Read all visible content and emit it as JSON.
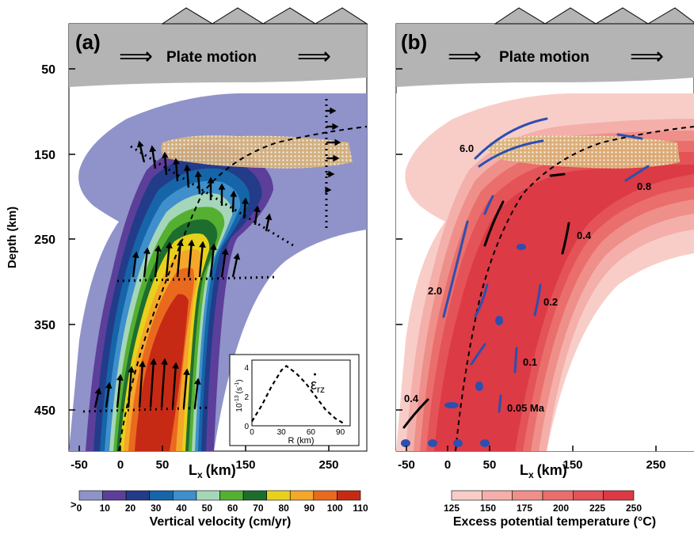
{
  "panel_a": {
    "label": "(a)",
    "plate_motion": "Plate motion",
    "y_axis_title": "Depth (km)",
    "y_ticks": [
      "50",
      "150",
      "250",
      "350",
      "450"
    ],
    "x_ticks": [
      "-50",
      "0",
      "50",
      "150",
      "250"
    ],
    "x_axis_label": "L",
    "x_axis_sub": "x",
    "x_axis_unit": "(km)",
    "inset": {
      "y_label": "10",
      "y_label_exp": "-13",
      "y_label_unit": "(s",
      "y_label_unit_exp": "-1",
      "y_label_close": ")",
      "y_ticks": [
        "0",
        "2",
        "4"
      ],
      "x_ticks": [
        "0",
        "30",
        "60",
        "90"
      ],
      "x_label": "R (km)",
      "curve_label": "ε",
      "curve_label_sub": "rz",
      "curve": [
        [
          0,
          0.3
        ],
        [
          10,
          1.4
        ],
        [
          20,
          2.7
        ],
        [
          30,
          3.8
        ],
        [
          35,
          4.1
        ],
        [
          45,
          3.6
        ],
        [
          55,
          2.9
        ],
        [
          65,
          2.0
        ],
        [
          75,
          1.1
        ],
        [
          85,
          0.5
        ],
        [
          95,
          0.1
        ]
      ]
    },
    "colorbar": {
      "prefix": ">",
      "ticks": [
        "0",
        "10",
        "20",
        "30",
        "40",
        "50",
        "60",
        "70",
        "80",
        "90",
        "100",
        "110"
      ],
      "title": "Vertical velocity (cm/yr)",
      "colors": [
        "#8f93c9",
        "#5c3f9a",
        "#223c8a",
        "#1565a8",
        "#3e8fcb",
        "#a5d6b9",
        "#55b032",
        "#1d6e2e",
        "#e8d11c",
        "#f3a829",
        "#e96a1e",
        "#c72a14"
      ]
    }
  },
  "panel_b": {
    "label": "(b)",
    "plate_motion": "Plate motion",
    "x_ticks": [
      "-50",
      "0",
      "50",
      "150",
      "250"
    ],
    "x_axis_label": "L",
    "x_axis_sub": "x",
    "x_axis_unit": "(km)",
    "contour_labels": [
      "6.0",
      "0.8",
      "0.4",
      "2.0",
      "0.2",
      "0.1",
      "0.05 Ma",
      "0.4"
    ],
    "colorbar": {
      "ticks": [
        "125",
        "150",
        "175",
        "200",
        "225",
        "250"
      ],
      "title": "Excess potential temperature (°C)",
      "colors": [
        "#f8cdc8",
        "#f4afaa",
        "#ef8f8a",
        "#ea6e6c",
        "#e35358",
        "#dc3a45"
      ]
    }
  },
  "colors": {
    "plate": "#b4b4b4",
    "background": "#ffffff",
    "contour_blue": "#2d4fb0"
  }
}
